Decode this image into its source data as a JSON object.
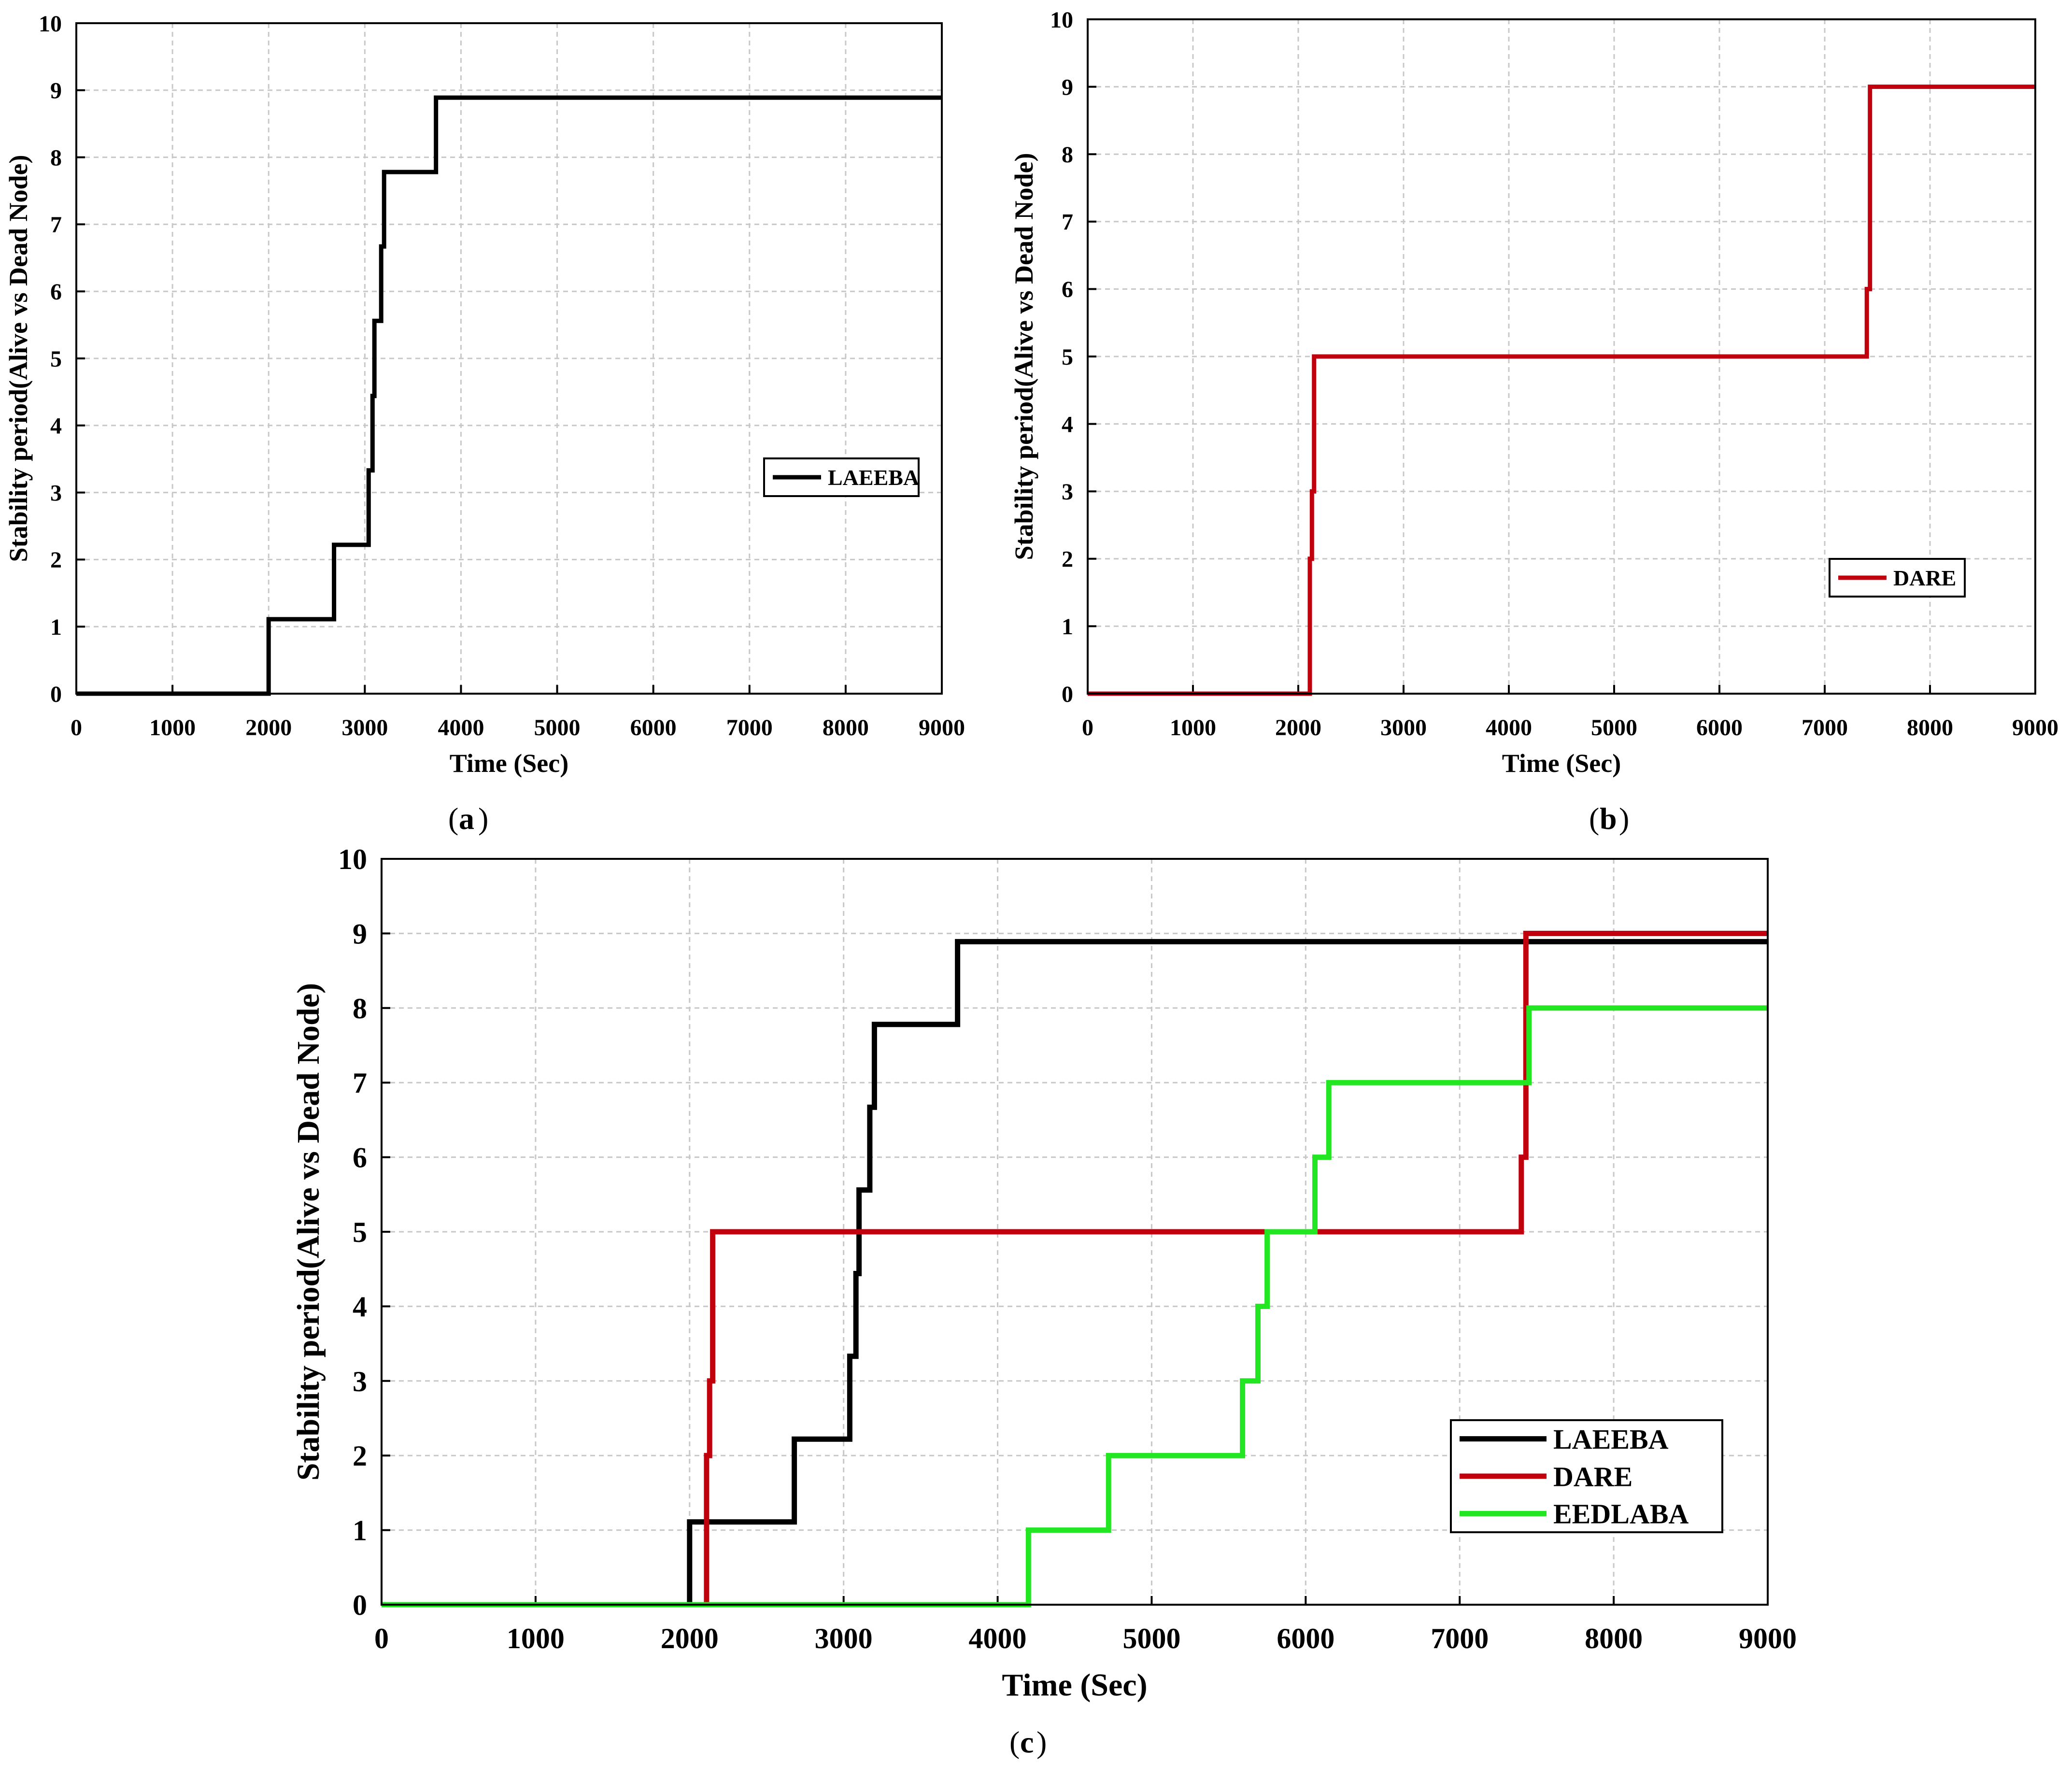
{
  "figure": {
    "captions": {
      "a": "a",
      "b": "b",
      "c": "c"
    }
  },
  "colors": {
    "LAEEBA": "#000000",
    "DARE": "#c0000c",
    "EEDLABA": "#22e622"
  },
  "chart_data": [
    {
      "id": "a",
      "type": "line",
      "caption": "a",
      "xlabel": "Time (Sec)",
      "ylabel": "Stability period(Alive vs Dead Node)",
      "xlim": [
        0,
        9000
      ],
      "ylim": [
        0,
        10
      ],
      "xticks": [
        0,
        1000,
        2000,
        3000,
        4000,
        5000,
        6000,
        7000,
        8000,
        9000
      ],
      "yticks": [
        0,
        1,
        2,
        3,
        4,
        5,
        6,
        7,
        8,
        9,
        10
      ],
      "grid": true,
      "legend_position": "right-middle",
      "series": [
        {
          "name": "LAEEBA",
          "color": "#000000",
          "points": [
            [
              0,
              0
            ],
            [
              2000,
              0
            ],
            [
              2000,
              1.11
            ],
            [
              2680,
              1.11
            ],
            [
              2680,
              2.22
            ],
            [
              3040,
              2.22
            ],
            [
              3040,
              3.33
            ],
            [
              3080,
              3.33
            ],
            [
              3080,
              4.44
            ],
            [
              3100,
              4.44
            ],
            [
              3100,
              5.56
            ],
            [
              3170,
              5.56
            ],
            [
              3170,
              6.67
            ],
            [
              3200,
              6.67
            ],
            [
              3200,
              7.78
            ],
            [
              3740,
              7.78
            ],
            [
              3740,
              8.89
            ],
            [
              9000,
              8.89
            ]
          ]
        }
      ]
    },
    {
      "id": "b",
      "type": "line",
      "caption": "b",
      "xlabel": "Time (Sec)",
      "ylabel": "Stability period(Alive vs Dead Node)",
      "xlim": [
        0,
        9000
      ],
      "ylim": [
        0,
        10
      ],
      "xticks": [
        0,
        1000,
        2000,
        3000,
        4000,
        5000,
        6000,
        7000,
        8000,
        9000
      ],
      "yticks": [
        0,
        1,
        2,
        3,
        4,
        5,
        6,
        7,
        8,
        9,
        10
      ],
      "grid": true,
      "legend_position": "bottom-right",
      "series": [
        {
          "name": "DARE",
          "color": "#c0000c",
          "points": [
            [
              0,
              0
            ],
            [
              2110,
              0
            ],
            [
              2110,
              2
            ],
            [
              2130,
              2
            ],
            [
              2130,
              3
            ],
            [
              2150,
              3
            ],
            [
              2150,
              5
            ],
            [
              7400,
              5
            ],
            [
              7400,
              6
            ],
            [
              7430,
              6
            ],
            [
              7430,
              9
            ],
            [
              9000,
              9
            ]
          ]
        }
      ]
    },
    {
      "id": "c",
      "type": "line",
      "caption": "c",
      "xlabel": "Time (Sec)",
      "ylabel": "Stability period(Alive vs Dead Node)",
      "xlim": [
        0,
        9000
      ],
      "ylim": [
        0,
        10
      ],
      "xticks": [
        0,
        1000,
        2000,
        3000,
        4000,
        5000,
        6000,
        7000,
        8000,
        9000
      ],
      "yticks": [
        0,
        1,
        2,
        3,
        4,
        5,
        6,
        7,
        8,
        9,
        10
      ],
      "grid": true,
      "legend_position": "bottom-right",
      "series": [
        {
          "name": "LAEEBA",
          "color": "#000000",
          "points": [
            [
              0,
              0
            ],
            [
              2000,
              0
            ],
            [
              2000,
              1.11
            ],
            [
              2680,
              1.11
            ],
            [
              2680,
              2.22
            ],
            [
              3040,
              2.22
            ],
            [
              3040,
              3.33
            ],
            [
              3080,
              3.33
            ],
            [
              3080,
              4.44
            ],
            [
              3100,
              4.44
            ],
            [
              3100,
              5.56
            ],
            [
              3170,
              5.56
            ],
            [
              3170,
              6.67
            ],
            [
              3200,
              6.67
            ],
            [
              3200,
              7.78
            ],
            [
              3740,
              7.78
            ],
            [
              3740,
              8.89
            ],
            [
              9000,
              8.89
            ]
          ]
        },
        {
          "name": "DARE",
          "color": "#c0000c",
          "points": [
            [
              0,
              0
            ],
            [
              2110,
              0
            ],
            [
              2110,
              2
            ],
            [
              2130,
              2
            ],
            [
              2130,
              3
            ],
            [
              2150,
              3
            ],
            [
              2150,
              5
            ],
            [
              7400,
              5
            ],
            [
              7400,
              6
            ],
            [
              7430,
              6
            ],
            [
              7430,
              9
            ],
            [
              9000,
              9
            ]
          ]
        },
        {
          "name": "EEDLABA",
          "color": "#22e622",
          "points": [
            [
              0,
              0
            ],
            [
              4200,
              0
            ],
            [
              4200,
              1
            ],
            [
              4720,
              1
            ],
            [
              4720,
              2
            ],
            [
              5590,
              2
            ],
            [
              5590,
              3
            ],
            [
              5690,
              3
            ],
            [
              5690,
              4
            ],
            [
              5750,
              4
            ],
            [
              5750,
              5
            ],
            [
              6060,
              5
            ],
            [
              6060,
              6
            ],
            [
              6150,
              6
            ],
            [
              6150,
              7
            ],
            [
              7450,
              7
            ],
            [
              7450,
              8
            ],
            [
              9000,
              8
            ]
          ]
        }
      ]
    }
  ]
}
